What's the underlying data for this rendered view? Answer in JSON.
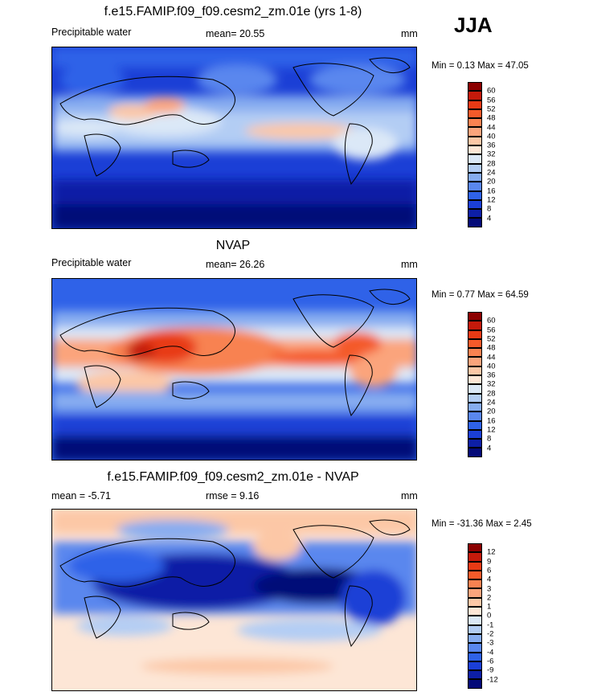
{
  "season": "JJA",
  "panels": [
    {
      "id": "model",
      "title": "f.e15.FAMIP.f09_f09.cesm2_zm.01e (yrs 1-8)",
      "left_label": "Precipitable water",
      "center_label": "mean=  20.55",
      "units": "mm",
      "minmax": "Min =  0.13 Max =  47.05",
      "levels": [
        "60",
        "56",
        "52",
        "48",
        "44",
        "40",
        "36",
        "32",
        "28",
        "24",
        "20",
        "16",
        "12",
        "8",
        "4"
      ],
      "colors": [
        "#8b0000",
        "#c41a0b",
        "#e83a15",
        "#f45a2a",
        "#f88251",
        "#fba47c",
        "#fcc7a6",
        "#fde6d6",
        "#dbe8f7",
        "#b3cdf4",
        "#86acf0",
        "#5a87ee",
        "#2f62e8",
        "#1b3fd6",
        "#0d1fa6",
        "#040a78"
      ]
    },
    {
      "id": "obs",
      "title": "NVAP",
      "left_label": "Precipitable water",
      "center_label": "mean=  26.26",
      "units": "mm",
      "minmax": "Min =  0.77 Max =  64.59",
      "levels": [
        "60",
        "56",
        "52",
        "48",
        "44",
        "40",
        "36",
        "32",
        "28",
        "24",
        "20",
        "16",
        "12",
        "8",
        "4"
      ],
      "colors": [
        "#8b0000",
        "#c41a0b",
        "#e83a15",
        "#f45a2a",
        "#f88251",
        "#fba47c",
        "#fcc7a6",
        "#fde6d6",
        "#dbe8f7",
        "#b3cdf4",
        "#86acf0",
        "#5a87ee",
        "#2f62e8",
        "#1b3fd6",
        "#0d1fa6",
        "#040a78"
      ]
    },
    {
      "id": "diff",
      "title": "f.e15.FAMIP.f09_f09.cesm2_zm.01e - NVAP",
      "left_label": "mean =  -5.71",
      "center_label": "rmse =   9.16",
      "units": "mm",
      "minmax": "Min = -31.36 Max =   2.45",
      "levels": [
        "12",
        "9",
        "6",
        "4",
        "3",
        "2",
        "1",
        "0",
        "-1",
        "-2",
        "-3",
        "-4",
        "-6",
        "-9",
        "-12"
      ],
      "colors": [
        "#8b0000",
        "#c41a0b",
        "#e83a15",
        "#f45a2a",
        "#f88251",
        "#fba47c",
        "#fcc7a6",
        "#fde6d6",
        "#dbe8f7",
        "#b3cdf4",
        "#86acf0",
        "#5a87ee",
        "#2f62e8",
        "#1b3fd6",
        "#0d1fa6",
        "#040a78"
      ]
    }
  ]
}
